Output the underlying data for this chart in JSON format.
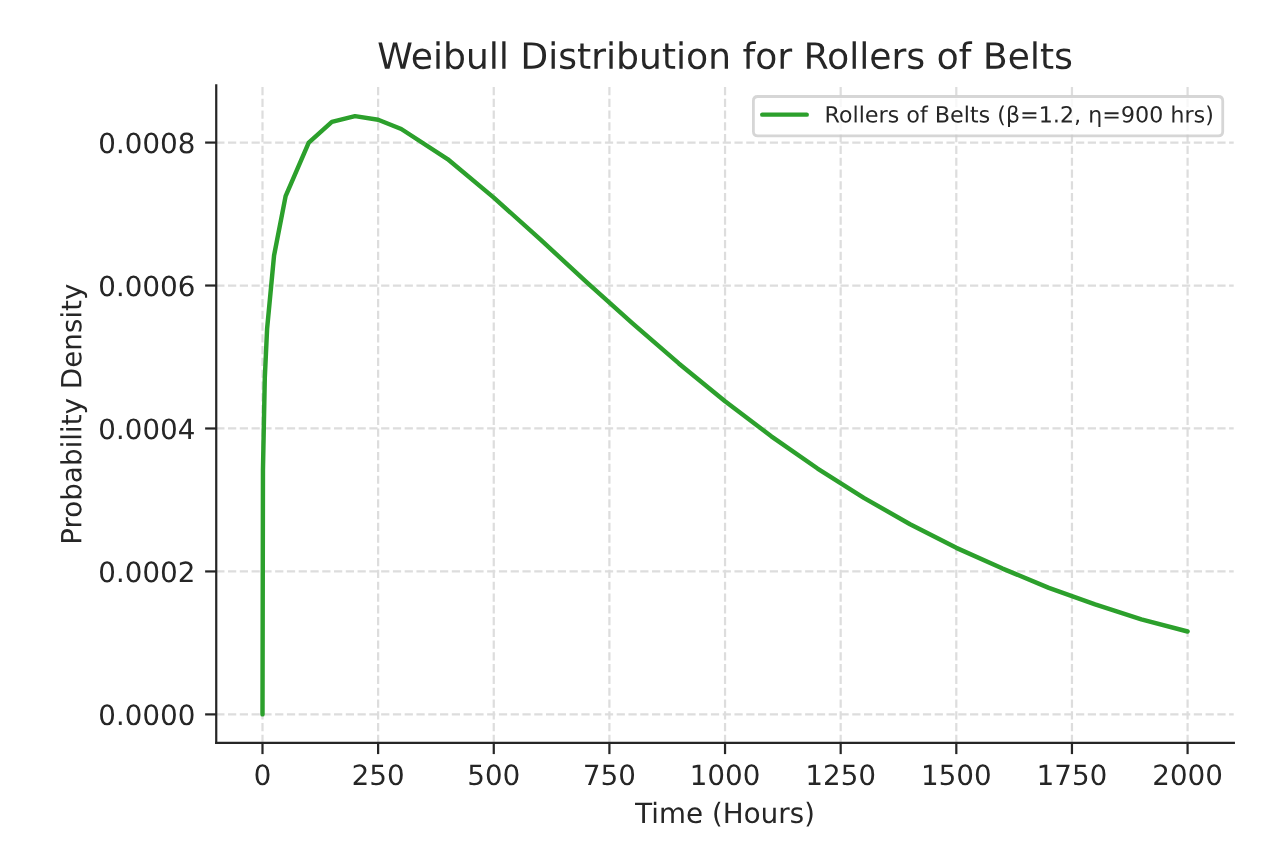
{
  "chart_data": {
    "type": "line",
    "title": "Weibull Distribution for Rollers of Belts",
    "xlabel": "Time (Hours)",
    "ylabel": "Probability Density",
    "x": [
      0,
      1,
      5,
      10,
      25,
      50,
      100,
      150,
      200,
      250,
      300,
      400,
      500,
      600,
      700,
      800,
      900,
      1000,
      1100,
      1200,
      1300,
      1400,
      1500,
      1600,
      1700,
      1800,
      1900,
      2000
    ],
    "series": [
      {
        "name": "Rollers of Belts (β=1.2, η=900 hrs)",
        "color": "#2ca02c",
        "values": [
          0,
          0.000342,
          0.000471,
          0.00054,
          0.000642,
          0.000725,
          0.0008,
          0.000829,
          0.000837,
          0.000832,
          0.000819,
          0.000777,
          0.000723,
          0.000665,
          0.000605,
          0.000547,
          0.000491,
          0.000438,
          0.000389,
          0.000344,
          0.000303,
          0.000266,
          0.000233,
          0.000204,
          0.000177,
          0.000154,
          0.000133,
          0.000116
        ]
      }
    ],
    "xlim": [
      -100,
      2100
    ],
    "ylim": [
      -4e-05,
      0.00088
    ],
    "xticks": [
      0,
      250,
      500,
      750,
      1000,
      1250,
      1500,
      1750,
      2000
    ],
    "yticks": [
      {
        "value": 0,
        "label": "0.0000"
      },
      {
        "value": 0.0002,
        "label": "0.0002"
      },
      {
        "value": 0.0004,
        "label": "0.0004"
      },
      {
        "value": 0.0006,
        "label": "0.0006"
      },
      {
        "value": 0.0008,
        "label": "0.0008"
      }
    ],
    "grid": true,
    "legend": "top right",
    "marker": "none",
    "line_style": "solid"
  }
}
